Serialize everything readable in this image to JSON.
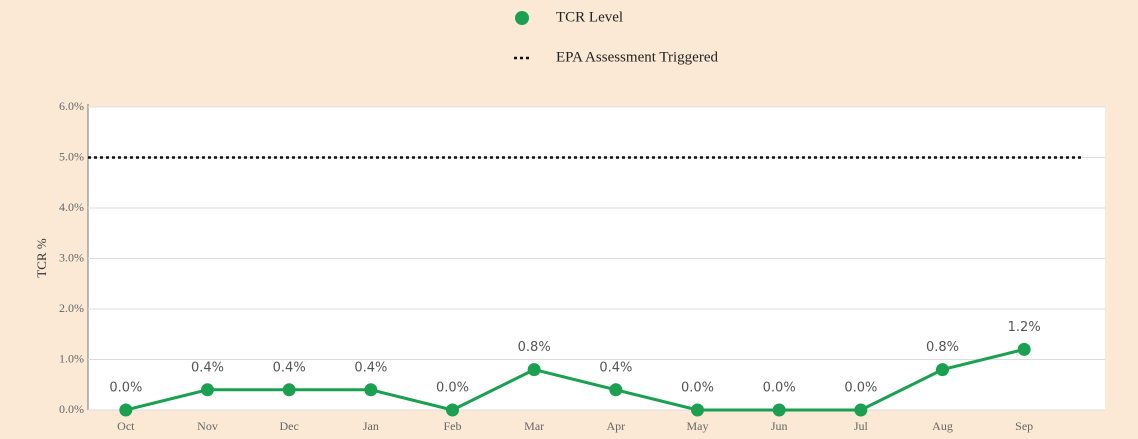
{
  "chart_data": {
    "type": "line",
    "categories": [
      "Oct",
      "Nov",
      "Dec",
      "Jan",
      "Feb",
      "Mar",
      "Apr",
      "May",
      "Jun",
      "Jul",
      "Aug",
      "Sep"
    ],
    "series": [
      {
        "name": "TCR Level",
        "color": "#1aa050",
        "values": [
          0,
          0.4,
          0.4,
          0.4,
          0,
          0.8,
          0.4,
          0,
          0,
          0,
          0.8,
          1.2
        ],
        "value_labels": [
          "0.0%",
          "0.4%",
          "0.4%",
          "0.4%",
          "0.0%",
          "0.8%",
          "0.4%",
          "0.0%",
          "0.0%",
          "0.0%",
          "0.8%",
          "1.2%"
        ]
      }
    ],
    "threshold": {
      "name": "EPA Assessment Triggered",
      "value": 5,
      "color": "#111111"
    },
    "ylabel": "TCR %",
    "ylim": [
      0,
      6
    ],
    "yticks": [
      {
        "value": 0,
        "label": "0.0%"
      },
      {
        "value": 1,
        "label": "1.0%"
      },
      {
        "value": 2,
        "label": "2.0%"
      },
      {
        "value": 3,
        "label": "3.0%"
      },
      {
        "value": 4,
        "label": "4.0%"
      },
      {
        "value": 5,
        "label": "5.0%"
      },
      {
        "value": 6,
        "label": "6.0%"
      }
    ],
    "grid": true
  }
}
